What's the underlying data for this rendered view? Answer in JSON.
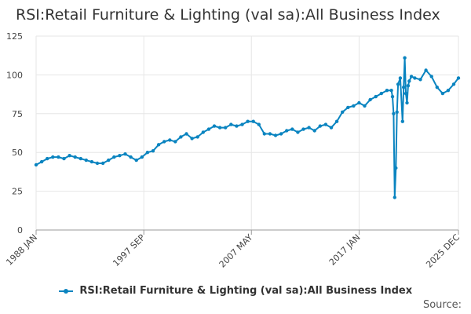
{
  "chart_data": {
    "type": "line",
    "title": "RSI:Retail Furniture & Lighting (val sa):All Business Index",
    "xlabel": "",
    "ylabel": "",
    "ylim": [
      0,
      125
    ],
    "yticks": [
      0,
      25,
      50,
      75,
      100,
      125
    ],
    "xlim": [
      1988.0,
      2025.92
    ],
    "xtick_values": [
      1988.0,
      1997.67,
      2007.33,
      2017.0,
      2025.92
    ],
    "xtick_labels": [
      "1988 JAN",
      "1997 SEP",
      "2007 MAY",
      "2017 JAN",
      "2025 DEC"
    ],
    "legend": [
      "RSI:Retail Furniture & Lighting (val sa):All Business Index"
    ],
    "legend_position": "bottom-center",
    "grid": true,
    "color": "#0a84c0",
    "series": [
      {
        "name": "RSI:Retail Furniture & Lighting (val sa):All Business Index",
        "x": [
          1988.0,
          1988.5,
          1989.0,
          1989.5,
          1990.0,
          1990.5,
          1991.0,
          1991.5,
          1992.0,
          1992.5,
          1993.0,
          1993.5,
          1994.0,
          1994.5,
          1995.0,
          1995.5,
          1996.0,
          1996.5,
          1997.0,
          1997.5,
          1998.0,
          1998.5,
          1999.0,
          1999.5,
          2000.0,
          2000.5,
          2001.0,
          2001.5,
          2002.0,
          2002.5,
          2003.0,
          2003.5,
          2004.0,
          2004.5,
          2005.0,
          2005.5,
          2006.0,
          2006.5,
          2007.0,
          2007.5,
          2008.0,
          2008.5,
          2009.0,
          2009.5,
          2010.0,
          2010.5,
          2011.0,
          2011.5,
          2012.0,
          2012.5,
          2013.0,
          2013.5,
          2014.0,
          2014.5,
          2015.0,
          2015.5,
          2016.0,
          2016.5,
          2017.0,
          2017.5,
          2018.0,
          2018.5,
          2019.0,
          2019.5,
          2019.9,
          2020.0,
          2020.1,
          2020.2,
          2020.3,
          2020.4,
          2020.5,
          2020.7,
          2020.9,
          2021.0,
          2021.1,
          2021.2,
          2021.3,
          2021.4,
          2021.5,
          2021.7,
          2022.0,
          2022.5,
          2023.0,
          2023.5,
          2024.0,
          2024.5,
          2025.0,
          2025.5,
          2025.92
        ],
        "values": [
          42,
          44,
          46,
          47,
          47,
          46,
          48,
          47,
          46,
          45,
          44,
          43,
          43,
          45,
          47,
          48,
          49,
          47,
          45,
          47,
          50,
          51,
          55,
          57,
          58,
          57,
          60,
          62,
          59,
          60,
          63,
          65,
          67,
          66,
          66,
          68,
          67,
          68,
          70,
          70,
          68,
          62,
          62,
          61,
          62,
          64,
          65,
          63,
          65,
          66,
          64,
          67,
          68,
          66,
          70,
          76,
          79,
          80,
          82,
          80,
          84,
          86,
          88,
          90,
          90,
          86,
          75,
          21,
          40,
          76,
          94,
          98,
          70,
          92,
          111,
          88,
          82,
          93,
          96,
          99,
          98,
          97,
          103,
          99,
          92,
          88,
          90,
          94,
          98
        ]
      }
    ]
  },
  "source_label": "Source:"
}
